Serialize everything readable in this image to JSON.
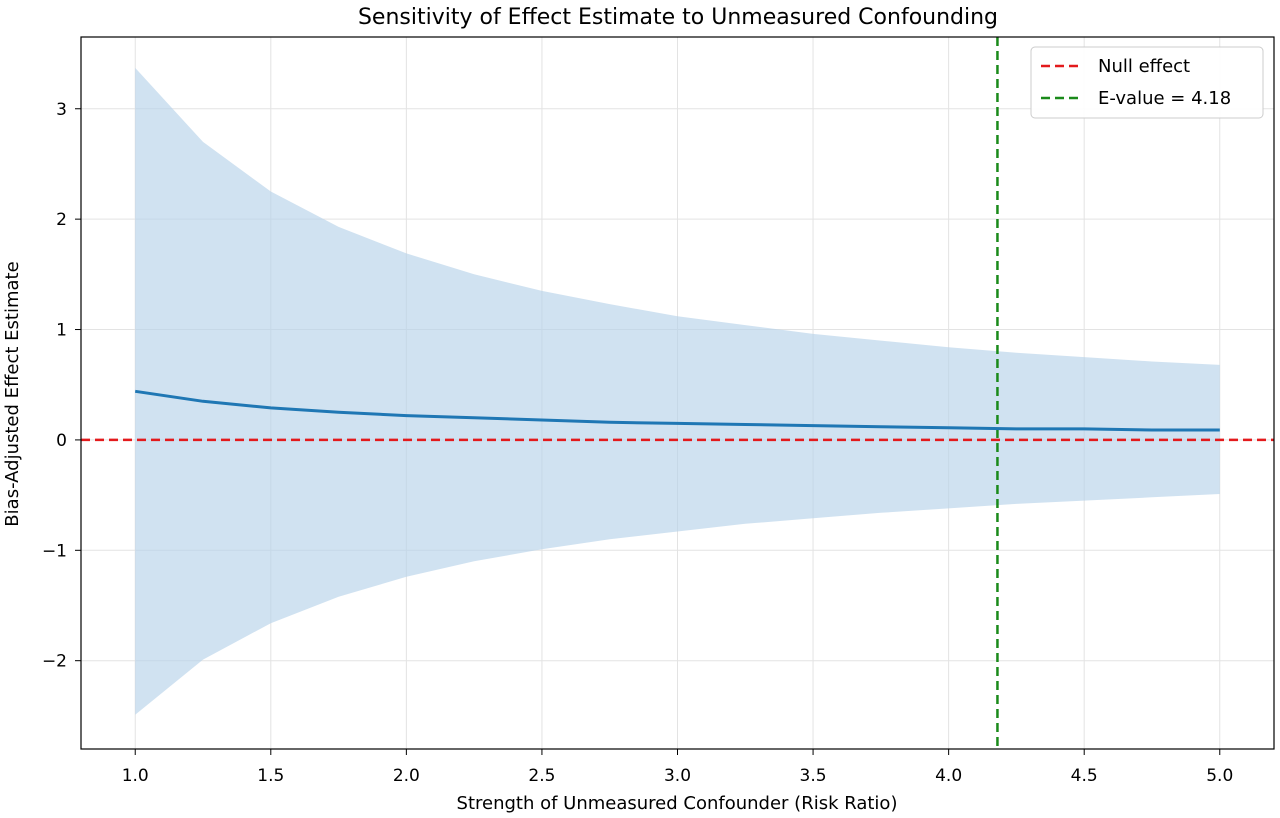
{
  "chart_data": {
    "type": "line",
    "title": "Sensitivity of Effect Estimate to Unmeasured Confounding",
    "xlabel": "Strength of Unmeasured Confounder (Risk Ratio)",
    "ylabel": "Bias-Adjusted Effect Estimate",
    "xlim": [
      0.8,
      5.2
    ],
    "ylim": [
      -2.8,
      3.65
    ],
    "x_ticks": [
      "1.0",
      "1.5",
      "2.0",
      "2.5",
      "3.0",
      "3.5",
      "4.0",
      "4.5",
      "5.0"
    ],
    "x_tick_values": [
      1.0,
      1.5,
      2.0,
      2.5,
      3.0,
      3.5,
      4.0,
      4.5,
      5.0
    ],
    "y_ticks": [
      "−2",
      "−1",
      "0",
      "1",
      "2",
      "3"
    ],
    "y_tick_values": [
      -2,
      -1,
      0,
      1,
      2,
      3
    ],
    "grid": true,
    "legend_position": "top-right",
    "series": [
      {
        "kind": "line",
        "x": [
          1.0,
          1.25,
          1.5,
          1.75,
          2.0,
          2.25,
          2.5,
          2.75,
          3.0,
          3.25,
          3.5,
          3.75,
          4.0,
          4.25,
          4.5,
          4.75,
          5.0
        ],
        "y": [
          0.44,
          0.35,
          0.29,
          0.25,
          0.22,
          0.2,
          0.18,
          0.16,
          0.15,
          0.14,
          0.13,
          0.12,
          0.11,
          0.1,
          0.1,
          0.09,
          0.09
        ],
        "color": "#1f77b4"
      },
      {
        "kind": "band",
        "x": [
          1.0,
          1.25,
          1.5,
          1.75,
          2.0,
          2.25,
          2.5,
          2.75,
          3.0,
          3.25,
          3.5,
          3.75,
          4.0,
          4.25,
          4.5,
          4.75,
          5.0
        ],
        "upper": [
          3.37,
          2.7,
          2.25,
          1.93,
          1.69,
          1.5,
          1.35,
          1.23,
          1.12,
          1.04,
          0.96,
          0.9,
          0.84,
          0.79,
          0.75,
          0.71,
          0.68
        ],
        "lower": [
          -2.49,
          -1.99,
          -1.66,
          -1.42,
          -1.24,
          -1.1,
          -0.99,
          -0.9,
          -0.83,
          -0.76,
          -0.71,
          -0.66,
          -0.62,
          -0.58,
          -0.55,
          -0.52,
          -0.49
        ],
        "color": "#b7d3e9"
      },
      {
        "kind": "hline",
        "name": "Null effect",
        "y": 0,
        "color": "#e31a1c",
        "style": "dashed"
      },
      {
        "kind": "vline",
        "name": "E-value = 4.18",
        "x": 4.18,
        "color": "#1a8a1a",
        "style": "dashed"
      }
    ]
  }
}
